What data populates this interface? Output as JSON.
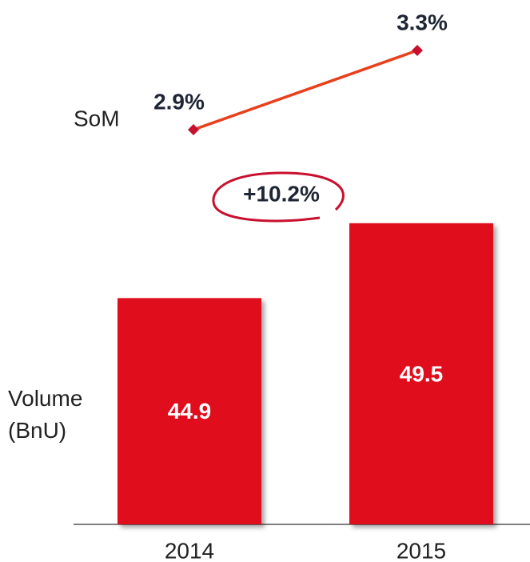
{
  "chart_data": {
    "type": "bar_line",
    "categories": [
      "2014",
      "2015"
    ],
    "ylim": [
      31,
      52
    ],
    "y2lim": [
      2.7,
      3.5
    ],
    "annotation": "+10.2%",
    "series": [
      {
        "name": "Volume (BnU)",
        "type": "bar",
        "color": "#e0101f",
        "values": [
          44.9,
          49.5
        ]
      },
      {
        "name": "SoM",
        "type": "line",
        "axis": "y2",
        "color": "#e8401c",
        "marker_color": "#c8102e",
        "values": [
          2.9,
          3.3
        ],
        "value_labels": [
          "2.9%",
          "3.3%"
        ]
      }
    ]
  }
}
